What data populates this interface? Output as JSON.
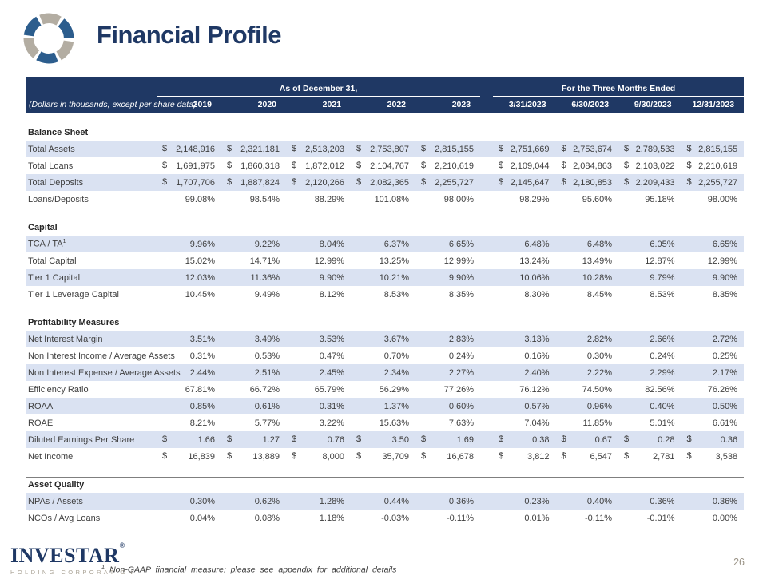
{
  "slide": {
    "title": "Financial Profile",
    "page_number": "26",
    "footnote": {
      "marker": "1",
      "text": "Non-GAAP financial measure; please see appendix for additional details"
    }
  },
  "logo": {
    "wordmark": "INVESTAR",
    "registered": "®",
    "subtext": "HOLDING CORPORATION"
  },
  "colors": {
    "header_navy": "#1f3864",
    "row_stripe": "#dae2f2",
    "title_navy": "#1f3864",
    "logo_blue": "#2c5d8d",
    "logo_gray": "#b3ada2",
    "page_number_gray": "#9a9386"
  },
  "table": {
    "units_note": "(Dollars in thousands, except per share data)",
    "currency_symbol": "$",
    "column_groups": [
      {
        "label": "As of December 31,",
        "span": 5
      },
      {
        "label": "For the Three Months Ended",
        "span": 4
      }
    ],
    "columns": [
      "2019",
      "2020",
      "2021",
      "2022",
      "2023",
      "3/31/2023",
      "6/30/2023",
      "9/30/2023",
      "12/31/2023"
    ],
    "sections": [
      {
        "title": "Balance Sheet",
        "rows": [
          {
            "label": "Total Assets",
            "format": "money",
            "values": [
              "2,148,916",
              "2,321,181",
              "2,513,203",
              "2,753,807",
              "2,815,155",
              "2,751,669",
              "2,753,674",
              "2,789,533",
              "2,815,155"
            ]
          },
          {
            "label": "Total Loans",
            "format": "money",
            "values": [
              "1,691,975",
              "1,860,318",
              "1,872,012",
              "2,104,767",
              "2,210,619",
              "2,109,044",
              "2,084,863",
              "2,103,022",
              "2,210,619"
            ]
          },
          {
            "label": "Total Deposits",
            "format": "money",
            "values": [
              "1,707,706",
              "1,887,824",
              "2,120,266",
              "2,082,365",
              "2,255,727",
              "2,145,647",
              "2,180,853",
              "2,209,433",
              "2,255,727"
            ]
          },
          {
            "label": "Loans/Deposits",
            "format": "percent",
            "values": [
              "99.08%",
              "98.54%",
              "88.29%",
              "101.08%",
              "98.00%",
              "98.29%",
              "95.60%",
              "95.18%",
              "98.00%"
            ]
          }
        ]
      },
      {
        "title": "Capital",
        "rows": [
          {
            "label": "TCA / TA",
            "sup": "1",
            "format": "percent",
            "values": [
              "9.96%",
              "9.22%",
              "8.04%",
              "6.37%",
              "6.65%",
              "6.48%",
              "6.48%",
              "6.05%",
              "6.65%"
            ]
          },
          {
            "label": "Total Capital",
            "format": "percent",
            "values": [
              "15.02%",
              "14.71%",
              "12.99%",
              "13.25%",
              "12.99%",
              "13.24%",
              "13.49%",
              "12.87%",
              "12.99%"
            ]
          },
          {
            "label": "Tier 1 Capital",
            "format": "percent",
            "values": [
              "12.03%",
              "11.36%",
              "9.90%",
              "10.21%",
              "9.90%",
              "10.06%",
              "10.28%",
              "9.79%",
              "9.90%"
            ]
          },
          {
            "label": "Tier 1 Leverage Capital",
            "format": "percent",
            "values": [
              "10.45%",
              "9.49%",
              "8.12%",
              "8.53%",
              "8.35%",
              "8.30%",
              "8.45%",
              "8.53%",
              "8.35%"
            ]
          }
        ]
      },
      {
        "title": "Profitability Measures",
        "rows": [
          {
            "label": "Net Interest Margin",
            "format": "percent",
            "values": [
              "3.51%",
              "3.49%",
              "3.53%",
              "3.67%",
              "2.83%",
              "3.13%",
              "2.82%",
              "2.66%",
              "2.72%"
            ]
          },
          {
            "label": "Non Interest Income / Average Assets",
            "format": "percent",
            "values": [
              "0.31%",
              "0.53%",
              "0.47%",
              "0.70%",
              "0.24%",
              "0.16%",
              "0.30%",
              "0.24%",
              "0.25%"
            ]
          },
          {
            "label": "Non Interest Expense / Average Assets",
            "format": "percent",
            "values": [
              "2.44%",
              "2.51%",
              "2.45%",
              "2.34%",
              "2.27%",
              "2.40%",
              "2.22%",
              "2.29%",
              "2.17%"
            ]
          },
          {
            "label": "Efficiency Ratio",
            "format": "percent",
            "values": [
              "67.81%",
              "66.72%",
              "65.79%",
              "56.29%",
              "77.26%",
              "76.12%",
              "74.50%",
              "82.56%",
              "76.26%"
            ]
          },
          {
            "label": "ROAA",
            "format": "percent",
            "values": [
              "0.85%",
              "0.61%",
              "0.31%",
              "1.37%",
              "0.60%",
              "0.57%",
              "0.96%",
              "0.40%",
              "0.50%"
            ]
          },
          {
            "label": "ROAE",
            "format": "percent",
            "values": [
              "8.21%",
              "5.77%",
              "3.22%",
              "15.63%",
              "7.63%",
              "7.04%",
              "11.85%",
              "5.01%",
              "6.61%"
            ]
          },
          {
            "label": "Diluted Earnings Per Share",
            "format": "money",
            "values": [
              "1.66",
              "1.27",
              "0.76",
              "3.50",
              "1.69",
              "0.38",
              "0.67",
              "0.28",
              "0.36"
            ]
          },
          {
            "label": "Net Income",
            "format": "money",
            "values": [
              "16,839",
              "13,889",
              "8,000",
              "35,709",
              "16,678",
              "3,812",
              "6,547",
              "2,781",
              "3,538"
            ]
          }
        ]
      },
      {
        "title": "Asset Quality",
        "rows": [
          {
            "label": "NPAs / Assets",
            "format": "percent",
            "values": [
              "0.30%",
              "0.62%",
              "1.28%",
              "0.44%",
              "0.36%",
              "0.23%",
              "0.40%",
              "0.36%",
              "0.36%"
            ]
          },
          {
            "label": "NCOs / Avg Loans",
            "format": "percent",
            "values": [
              "0.04%",
              "0.08%",
              "1.18%",
              "-0.03%",
              "-0.11%",
              "0.01%",
              "-0.11%",
              "-0.01%",
              "0.00%"
            ]
          }
        ]
      }
    ]
  }
}
